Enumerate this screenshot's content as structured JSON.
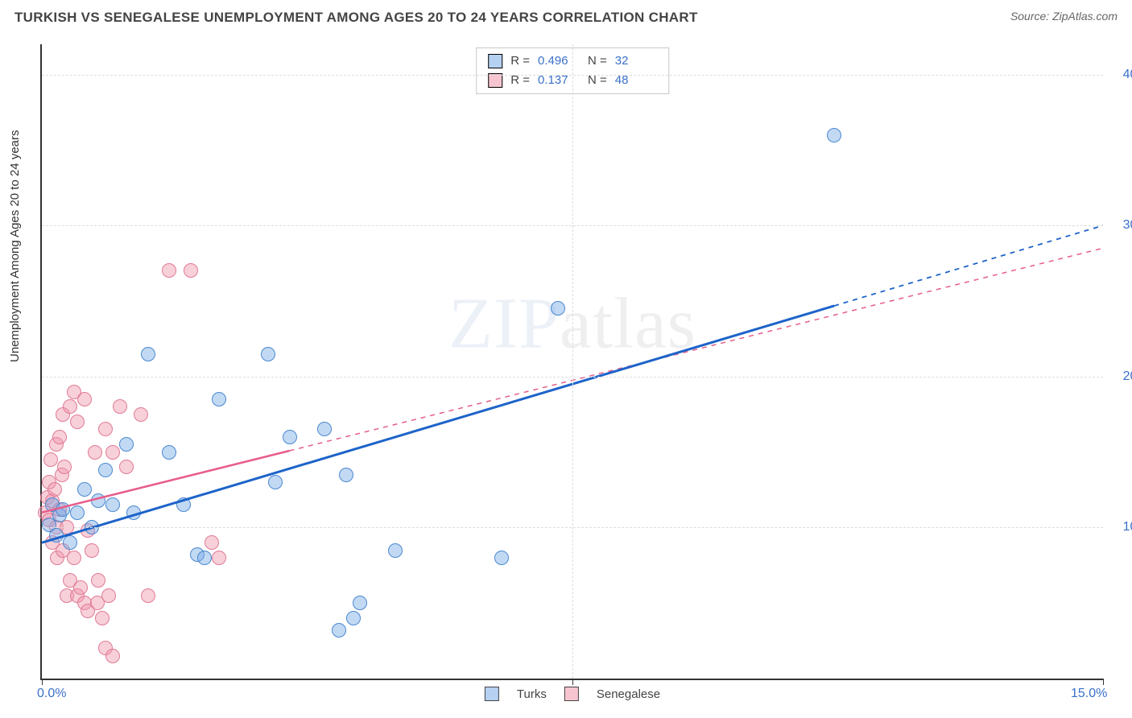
{
  "header": {
    "title": "TURKISH VS SENEGALESE UNEMPLOYMENT AMONG AGES 20 TO 24 YEARS CORRELATION CHART",
    "source": "Source: ZipAtlas.com"
  },
  "axis": {
    "y_title": "Unemployment Among Ages 20 to 24 years",
    "x_min": 0.0,
    "x_max": 15.0,
    "y_min": 0.0,
    "y_max": 42.0,
    "y_ticks": [
      10.0,
      20.0,
      30.0,
      40.0
    ],
    "y_tick_labels": [
      "10.0%",
      "20.0%",
      "30.0%",
      "40.0%"
    ],
    "x_ticks": [
      0.0,
      7.5,
      15.0
    ],
    "x_tick_labels": [
      "0.0%",
      "",
      "15.0%"
    ],
    "grid_color": "#dddddd",
    "axis_color": "#333333"
  },
  "series": {
    "turks": {
      "label": "Turks",
      "R": "0.496",
      "N": "32",
      "color_fill": "rgba(120,170,230,0.45)",
      "color_stroke": "#4a88d0",
      "marker_size_px": 18,
      "trend": {
        "x1": 0.0,
        "y1": 9.0,
        "x2": 15.0,
        "y2": 30.0,
        "solid_to_x": 11.2,
        "color": "#1d63c9",
        "width": 3
      },
      "points": [
        [
          0.1,
          10.2
        ],
        [
          0.15,
          11.5
        ],
        [
          0.2,
          9.5
        ],
        [
          0.25,
          10.8
        ],
        [
          0.3,
          11.2
        ],
        [
          0.4,
          9.0
        ],
        [
          0.5,
          11.0
        ],
        [
          0.6,
          12.5
        ],
        [
          0.7,
          10.0
        ],
        [
          0.8,
          11.8
        ],
        [
          0.9,
          13.8
        ],
        [
          1.0,
          11.5
        ],
        [
          1.2,
          15.5
        ],
        [
          1.3,
          11.0
        ],
        [
          1.5,
          21.5
        ],
        [
          1.8,
          15.0
        ],
        [
          2.0,
          11.5
        ],
        [
          2.2,
          8.2
        ],
        [
          2.3,
          8.0
        ],
        [
          2.5,
          18.5
        ],
        [
          3.2,
          21.5
        ],
        [
          3.3,
          13.0
        ],
        [
          3.5,
          16.0
        ],
        [
          4.0,
          16.5
        ],
        [
          4.2,
          3.2
        ],
        [
          4.3,
          13.5
        ],
        [
          4.4,
          4.0
        ],
        [
          4.5,
          5.0
        ],
        [
          5.0,
          8.5
        ],
        [
          6.5,
          8.0
        ],
        [
          7.3,
          24.5
        ],
        [
          11.2,
          36.0
        ]
      ]
    },
    "senegalese": {
      "label": "Senegalese",
      "R": "0.137",
      "N": "48",
      "color_fill": "rgba(240,150,170,0.45)",
      "color_stroke": "#e07a95",
      "marker_size_px": 18,
      "trend": {
        "x1": 0.0,
        "y1": 11.0,
        "x2": 15.0,
        "y2": 28.5,
        "solid_to_x": 3.5,
        "color": "#e75d89",
        "width": 2.5
      },
      "points": [
        [
          0.05,
          11.0
        ],
        [
          0.08,
          12.0
        ],
        [
          0.1,
          10.5
        ],
        [
          0.1,
          13.0
        ],
        [
          0.12,
          14.5
        ],
        [
          0.15,
          11.8
        ],
        [
          0.15,
          9.0
        ],
        [
          0.18,
          12.5
        ],
        [
          0.2,
          10.0
        ],
        [
          0.2,
          15.5
        ],
        [
          0.22,
          8.0
        ],
        [
          0.25,
          11.2
        ],
        [
          0.25,
          16.0
        ],
        [
          0.28,
          13.5
        ],
        [
          0.3,
          8.5
        ],
        [
          0.3,
          17.5
        ],
        [
          0.32,
          14.0
        ],
        [
          0.35,
          10.0
        ],
        [
          0.35,
          5.5
        ],
        [
          0.4,
          18.0
        ],
        [
          0.4,
          6.5
        ],
        [
          0.45,
          19.0
        ],
        [
          0.45,
          8.0
        ],
        [
          0.5,
          17.0
        ],
        [
          0.5,
          5.5
        ],
        [
          0.55,
          6.0
        ],
        [
          0.6,
          18.5
        ],
        [
          0.6,
          5.0
        ],
        [
          0.65,
          4.5
        ],
        [
          0.65,
          9.8
        ],
        [
          0.7,
          8.5
        ],
        [
          0.75,
          15.0
        ],
        [
          0.78,
          5.0
        ],
        [
          0.8,
          6.5
        ],
        [
          0.85,
          4.0
        ],
        [
          0.9,
          16.5
        ],
        [
          0.9,
          2.0
        ],
        [
          0.95,
          5.5
        ],
        [
          1.0,
          15.0
        ],
        [
          1.0,
          1.5
        ],
        [
          1.1,
          18.0
        ],
        [
          1.2,
          14.0
        ],
        [
          1.4,
          17.5
        ],
        [
          1.5,
          5.5
        ],
        [
          1.8,
          27.0
        ],
        [
          2.1,
          27.0
        ],
        [
          2.4,
          9.0
        ],
        [
          2.5,
          8.0
        ]
      ]
    }
  },
  "legend_top": {
    "r_label": "R =",
    "n_label": "N ="
  },
  "watermark": {
    "bold": "ZIP",
    "light": "atlas"
  },
  "colors": {
    "title": "#444444",
    "tick_text": "#3a71c9",
    "background": "#ffffff"
  }
}
